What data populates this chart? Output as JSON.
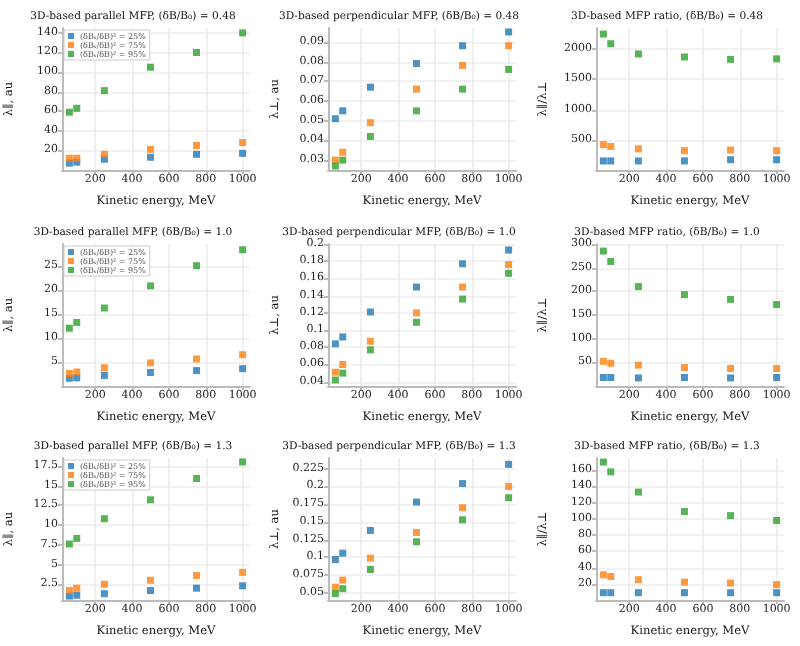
{
  "chart_data": [
    {
      "type": "scatter",
      "title": "3D-based parallel MFP, (δB/B₀) = 0.48",
      "xlabel": "Kinetic energy, MeV",
      "ylabel": "λ∥, au",
      "x": [
        60,
        100,
        250,
        500,
        750,
        1000
      ],
      "xlim": [
        20,
        1040
      ],
      "xticks": [
        200,
        400,
        600,
        800,
        1000
      ],
      "ylim": [
        0,
        145
      ],
      "yticks": [
        20,
        40,
        60,
        80,
        100,
        120,
        140
      ],
      "grid": true,
      "marker": "square",
      "legend": "top left",
      "series": [
        {
          "name": "(δBₛ/δB)² = 25%",
          "color": "#1f77b4",
          "values": [
            7,
            8,
            11,
            13,
            16,
            17
          ]
        },
        {
          "name": "(δBₛ/δB)² = 75%",
          "color": "#ff7f0e",
          "values": [
            12,
            12,
            16,
            21,
            25,
            28
          ]
        },
        {
          "name": "(δBₛ/δB)² = 95%",
          "color": "#2ca02c",
          "values": [
            59,
            63,
            81,
            105,
            120,
            140
          ]
        }
      ]
    },
    {
      "type": "scatter",
      "title": "3D-based perpendicular MFP, (δB/B₀) = 0.48",
      "xlabel": "Kinetic energy, MeV",
      "ylabel": "λ⊥, au",
      "x": [
        60,
        100,
        250,
        500,
        750,
        1000
      ],
      "xlim": [
        20,
        1040
      ],
      "xticks": [
        200,
        400,
        600,
        800,
        1000
      ],
      "ylim": [
        0.025,
        0.097
      ],
      "yticks": [
        0.03,
        0.04,
        0.05,
        0.06,
        0.07,
        0.08,
        0.09
      ],
      "grid": true,
      "marker": "square",
      "series": [
        {
          "color": "#1f77b4",
          "values": [
            0.051,
            0.055,
            0.067,
            0.079,
            0.088,
            0.095
          ]
        },
        {
          "color": "#ff7f0e",
          "values": [
            0.03,
            0.034,
            0.049,
            0.066,
            0.078,
            0.088
          ]
        },
        {
          "color": "#2ca02c",
          "values": [
            0.027,
            0.03,
            0.042,
            0.055,
            0.066,
            0.076
          ]
        }
      ]
    },
    {
      "type": "scatter",
      "title": "3D-based MFP ratio, (δB/B₀) = 0.48",
      "xlabel": "Kinetic energy, MeV",
      "ylabel": "λ∥/λ⊥",
      "x": [
        60,
        100,
        250,
        500,
        750,
        1000
      ],
      "xlim": [
        20,
        1040
      ],
      "xticks": [
        200,
        400,
        600,
        800,
        1000
      ],
      "ylim": [
        0,
        2350
      ],
      "yticks": [
        500,
        1000,
        1500,
        2000
      ],
      "grid": true,
      "marker": "square",
      "series": [
        {
          "color": "#1f77b4",
          "values": [
            150,
            150,
            150,
            150,
            170,
            170
          ]
        },
        {
          "color": "#ff7f0e",
          "values": [
            420,
            390,
            350,
            320,
            330,
            320
          ]
        },
        {
          "color": "#2ca02c",
          "values": [
            2250,
            2090,
            1920,
            1870,
            1830,
            1840
          ]
        }
      ]
    },
    {
      "type": "scatter",
      "title": "3D-based parallel MFP, (δB/B₀) = 1.0",
      "xlabel": "Kinetic energy, MeV",
      "ylabel": "λ∥, au",
      "x": [
        60,
        100,
        250,
        500,
        750,
        1000
      ],
      "xlim": [
        20,
        1040
      ],
      "xticks": [
        200,
        400,
        600,
        800,
        1000
      ],
      "ylim": [
        0,
        29.5
      ],
      "yticks": [
        5,
        10,
        15,
        20,
        25
      ],
      "grid": true,
      "marker": "square",
      "legend": "top left",
      "series": [
        {
          "name": "(δBₛ/δB)² = 25%",
          "color": "#1f77b4",
          "values": [
            1.6,
            1.7,
            2.2,
            2.8,
            3.2,
            3.6
          ]
        },
        {
          "name": "(δBₛ/δB)² = 75%",
          "color": "#ff7f0e",
          "values": [
            2.6,
            2.9,
            3.8,
            4.8,
            5.6,
            6.5
          ]
        },
        {
          "name": "(δBₛ/δB)² = 95%",
          "color": "#2ca02c",
          "values": [
            12,
            13.2,
            16.2,
            20.8,
            25,
            28.3
          ]
        }
      ]
    },
    {
      "type": "scatter",
      "title": "3D-based perpendicular MFP, (δB/B₀) = 1.0",
      "xlabel": "Kinetic energy, MeV",
      "ylabel": "λ⊥, au",
      "x": [
        60,
        100,
        250,
        500,
        750,
        1000
      ],
      "xlim": [
        20,
        1040
      ],
      "xticks": [
        200,
        400,
        600,
        800,
        1000
      ],
      "ylim": [
        0.035,
        0.2
      ],
      "yticks": [
        0.04,
        0.06,
        0.08,
        0.1,
        0.12,
        0.14,
        0.16,
        0.18,
        0.2
      ],
      "grid": true,
      "marker": "square",
      "series": [
        {
          "color": "#1f77b4",
          "values": [
            0.084,
            0.092,
            0.121,
            0.15,
            0.177,
            0.193
          ]
        },
        {
          "color": "#ff7f0e",
          "values": [
            0.051,
            0.06,
            0.087,
            0.12,
            0.15,
            0.176
          ]
        },
        {
          "color": "#2ca02c",
          "values": [
            0.042,
            0.05,
            0.077,
            0.109,
            0.136,
            0.166
          ]
        }
      ]
    },
    {
      "type": "scatter",
      "title": "3D-based MFP ratio, (δB/B₀) = 1.0",
      "xlabel": "Kinetic energy, MeV",
      "ylabel": "λ∥/λ⊥",
      "x": [
        60,
        100,
        250,
        500,
        750,
        1000
      ],
      "xlim": [
        20,
        1040
      ],
      "xticks": [
        200,
        400,
        600,
        800,
        1000
      ],
      "ylim": [
        0,
        300
      ],
      "yticks": [
        50,
        100,
        150,
        200,
        250,
        300
      ],
      "grid": true,
      "marker": "square",
      "series": [
        {
          "color": "#1f77b4",
          "values": [
            18,
            18,
            17,
            18,
            17,
            18
          ]
        },
        {
          "color": "#ff7f0e",
          "values": [
            52,
            48,
            44,
            39,
            37,
            37
          ]
        },
        {
          "color": "#2ca02c",
          "values": [
            285,
            263,
            210,
            193,
            183,
            172
          ]
        }
      ]
    },
    {
      "type": "scatter",
      "title": "3D-based parallel MFP, (δB/B₀) = 1.3",
      "xlabel": "Kinetic energy, MeV",
      "ylabel": "λ∥, au",
      "x": [
        60,
        100,
        250,
        500,
        750,
        1000
      ],
      "xlim": [
        20,
        1040
      ],
      "xticks": [
        200,
        400,
        600,
        800,
        1000
      ],
      "ylim": [
        0.5,
        18.5
      ],
      "yticks": [
        2.5,
        5,
        7.5,
        10,
        12.5,
        15,
        17.5
      ],
      "grid": true,
      "marker": "square",
      "legend": "top left",
      "series": [
        {
          "name": "(δBₛ/δB)² = 25%",
          "color": "#1f77b4",
          "values": [
            1.0,
            1.1,
            1.3,
            1.7,
            2.0,
            2.3
          ]
        },
        {
          "name": "(δBₛ/δB)² = 75%",
          "color": "#ff7f0e",
          "values": [
            1.7,
            2.0,
            2.5,
            3.0,
            3.6,
            4.0
          ]
        },
        {
          "name": "(δBₛ/δB)² = 95%",
          "color": "#2ca02c",
          "values": [
            7.6,
            8.3,
            10.8,
            13.2,
            15.9,
            18.0
          ]
        }
      ]
    },
    {
      "type": "scatter",
      "title": "3D-based perpendicular MFP, (δB/B₀) = 1.3",
      "xlabel": "Kinetic energy, MeV",
      "ylabel": "λ⊥, au",
      "x": [
        60,
        100,
        250,
        500,
        750,
        1000
      ],
      "xlim": [
        20,
        1040
      ],
      "xticks": [
        200,
        400,
        600,
        800,
        1000
      ],
      "ylim": [
        0.04,
        0.24
      ],
      "yticks": [
        0.05,
        0.075,
        0.1,
        0.125,
        0.15,
        0.175,
        0.2,
        0.225
      ],
      "grid": true,
      "marker": "square",
      "series": [
        {
          "color": "#1f77b4",
          "values": [
            0.097,
            0.106,
            0.138,
            0.178,
            0.204,
            0.231
          ]
        },
        {
          "color": "#ff7f0e",
          "values": [
            0.058,
            0.068,
            0.099,
            0.135,
            0.17,
            0.2
          ]
        },
        {
          "color": "#2ca02c",
          "values": [
            0.049,
            0.056,
            0.083,
            0.122,
            0.153,
            0.184
          ]
        }
      ]
    },
    {
      "type": "scatter",
      "title": "3D-based MFP ratio, (δB/B₀) = 1.3",
      "xlabel": "Kinetic energy, MeV",
      "ylabel": "λ∥/λ⊥",
      "x": [
        60,
        100,
        250,
        500,
        750,
        1000
      ],
      "xlim": [
        20,
        1040
      ],
      "xticks": [
        200,
        400,
        600,
        800,
        1000
      ],
      "ylim": [
        0,
        175
      ],
      "yticks": [
        20,
        40,
        60,
        80,
        100,
        120,
        140,
        160
      ],
      "grid": true,
      "marker": "square",
      "series": [
        {
          "color": "#1f77b4",
          "values": [
            9,
            9,
            9,
            9,
            9,
            9
          ]
        },
        {
          "color": "#ff7f0e",
          "values": [
            31,
            29,
            25,
            22,
            21,
            19
          ]
        },
        {
          "color": "#2ca02c",
          "values": [
            170,
            158,
            133,
            109,
            104,
            98
          ]
        }
      ]
    }
  ]
}
